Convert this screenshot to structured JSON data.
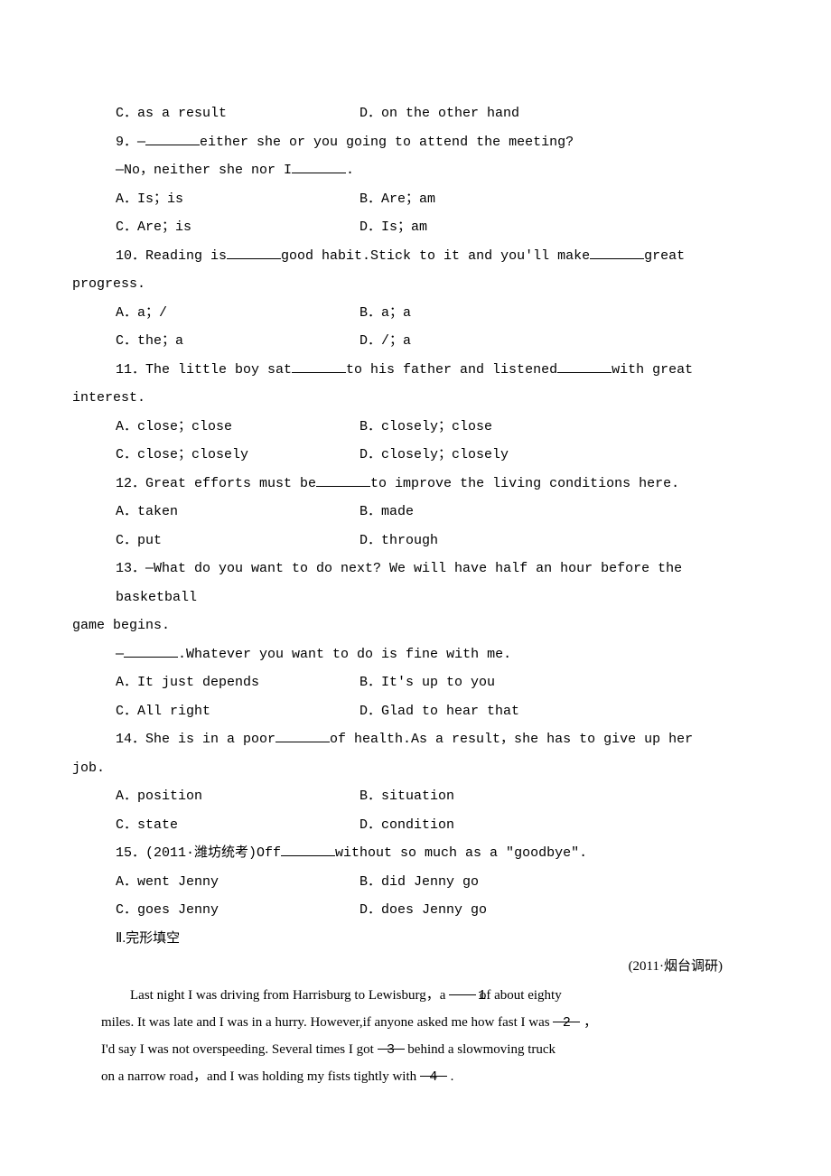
{
  "q8": {
    "optC": "C．as a result",
    "optD": "D．on the other hand"
  },
  "q9": {
    "stem_pre": "9．—",
    "stem_post": "either she or you going to attend the meeting?",
    "line2_pre": "—No，neither she nor I",
    "line2_post": ".",
    "optA": "A．Is；is",
    "optB": "B．Are；am",
    "optC": "C．Are；is",
    "optD": "D．Is；am"
  },
  "q10": {
    "stem_pre": "10．Reading is",
    "stem_mid": "good habit.Stick to it and you'll make",
    "stem_post": "great",
    "cont": "progress.",
    "optA": "A．a；/",
    "optB": "B．a；a",
    "optC": "C．the；a",
    "optD": "D．/；a"
  },
  "q11": {
    "stem_pre": "11．The little boy sat",
    "stem_mid": "to his father and listened",
    "stem_post": "with great",
    "cont": "interest.",
    "optA": "A．close；close",
    "optB": "B．closely；close",
    "optC": "C．close；closely",
    "optD": "D．closely；closely"
  },
  "q12": {
    "stem_pre": "12．Great efforts must be",
    "stem_post": "to improve the living conditions here.",
    "optA": "A．taken",
    "optB": "B．made",
    "optC": "C．put",
    "optD": "D．through"
  },
  "q13": {
    "stem": "13．—What do you want to do next? We will have half an hour before the basketball",
    "cont": "game begins.",
    "line2_pre": "—",
    "line2_post": ".Whatever you want to do is fine with me.",
    "optA": "A．It just depends",
    "optB": "B．It's up to you",
    "optC": "C．All right",
    "optD": "D．Glad to hear that"
  },
  "q14": {
    "stem_pre": "14．She is in a poor",
    "stem_post": "of health.As a result，she has to give up her",
    "cont": "job.",
    "optA": "A．position",
    "optB": "B．situation",
    "optC": "C．state",
    "optD": "D．condition"
  },
  "q15": {
    "stem_pre": "15．(2011·潍坊统考)Off",
    "stem_post": "without so much as a \"goodbye\".",
    "optA": "A．went Jenny",
    "optB": "B．did Jenny go",
    "optC": "C．goes Jenny",
    "optD": "D．does Jenny go"
  },
  "section2": "Ⅱ.完形填空",
  "source": "(2011·烟台调研)",
  "passage": {
    "p1a": "Last night I was driving from Harrisburg to Lewisburg，a",
    "b1": "1",
    "p1b": "of about eighty",
    "p2a": "miles. It was late and I was in a hurry. However,if anyone asked me how fast I was",
    "b2": "2",
    "p2b": "，",
    "p3a": "I'd say I was not over­speeding. Several times I got",
    "b3": "3",
    "p3b": "behind a slow­moving truck",
    "p4a": "on a narrow road，and I was holding my fists tightly with",
    "b4": "4",
    "p4b": "."
  }
}
